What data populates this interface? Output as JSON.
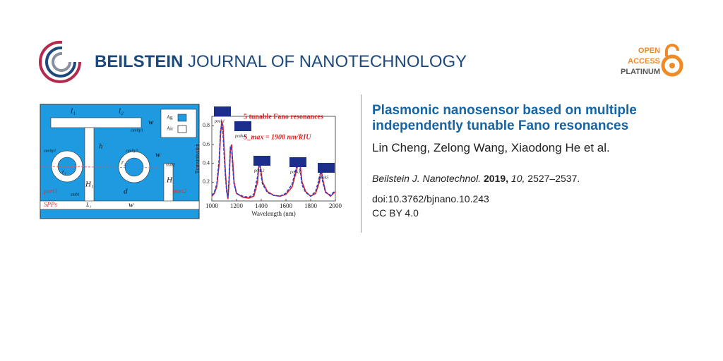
{
  "header": {
    "journal_bold": "BEILSTEIN",
    "journal_rest": "JOURNAL OF NANOTECHNOLOGY",
    "badge": [
      "OPEN",
      "ACCESS",
      "PLATINUM"
    ]
  },
  "schematic": {
    "labels": [
      "l₁",
      "l₂",
      "w",
      "cavity3",
      "cavity1",
      "cavity2",
      "h",
      "w",
      "r₁",
      "r₂",
      "stub2",
      "H",
      "H₁",
      "d",
      "stub1",
      "port1",
      "port2",
      "SPPs",
      "L₁",
      "w"
    ],
    "legend": [
      "Ag",
      "Air"
    ]
  },
  "chart_data": {
    "type": "line",
    "title": "5 tunable Fano resonances",
    "annotation": "S_max = 1900 nm/RIU",
    "xlabel": "Wavelength (nm)",
    "ylabel": "Transmission",
    "peaks": [
      "peak1",
      "peak4",
      "peak2",
      "peak3",
      "peak5"
    ],
    "xlim": [
      1000,
      2000
    ],
    "ylim": [
      0,
      0.9
    ],
    "xticks": [
      1000,
      1200,
      1400,
      1600,
      1800,
      2000
    ],
    "yticks": [
      0.2,
      0.4,
      0.6,
      0.8
    ],
    "x": [
      1000,
      1020,
      1040,
      1060,
      1070,
      1080,
      1090,
      1100,
      1110,
      1120,
      1130,
      1140,
      1150,
      1160,
      1170,
      1180,
      1200,
      1250,
      1300,
      1340,
      1370,
      1385,
      1395,
      1410,
      1450,
      1500,
      1550,
      1600,
      1650,
      1680,
      1700,
      1715,
      1730,
      1760,
      1800,
      1840,
      1870,
      1885,
      1895,
      1920,
      1960,
      2000
    ],
    "series": [
      {
        "color": "#e02020",
        "linestyle": "solid",
        "values": [
          0.05,
          0.08,
          0.15,
          0.4,
          0.7,
          0.85,
          0.8,
          0.55,
          0.3,
          0.12,
          0.02,
          0.2,
          0.55,
          0.6,
          0.4,
          0.2,
          0.08,
          0.04,
          0.03,
          0.05,
          0.2,
          0.45,
          0.35,
          0.2,
          0.1,
          0.06,
          0.05,
          0.07,
          0.15,
          0.3,
          0.4,
          0.38,
          0.2,
          0.1,
          0.05,
          0.08,
          0.2,
          0.35,
          0.25,
          0.1,
          0.05,
          0.1
        ]
      },
      {
        "color": "#2a3fd0",
        "linestyle": "dashed",
        "values": [
          0.06,
          0.09,
          0.18,
          0.45,
          0.74,
          0.82,
          0.72,
          0.48,
          0.26,
          0.1,
          0.04,
          0.26,
          0.58,
          0.55,
          0.35,
          0.18,
          0.08,
          0.05,
          0.04,
          0.07,
          0.26,
          0.44,
          0.3,
          0.18,
          0.09,
          0.06,
          0.05,
          0.08,
          0.18,
          0.34,
          0.41,
          0.33,
          0.17,
          0.09,
          0.05,
          0.1,
          0.24,
          0.34,
          0.22,
          0.09,
          0.06,
          0.11
        ]
      }
    ]
  },
  "article": {
    "title": "Plasmonic nanosensor based on multiple independently tunable Fano resonances",
    "authors": "Lin Cheng, Zelong Wang, Xiaodong He et al.",
    "journal": "Beilstein J. Nanotechnol.",
    "year": "2019,",
    "volume": "10,",
    "pages": "2527–2537.",
    "doi": "doi:10.3762/bjnano.10.243",
    "license": "CC BY 4.0"
  }
}
